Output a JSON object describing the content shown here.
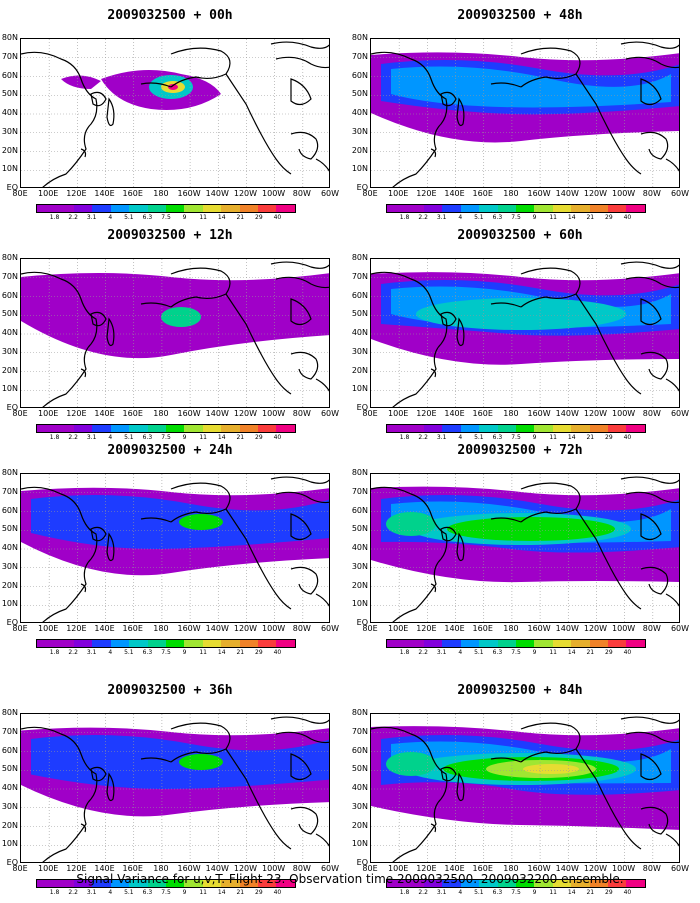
{
  "panels": [
    {
      "title": "2009032500 + 00h",
      "level": 1
    },
    {
      "title": "2009032500 + 48h",
      "level": 4
    },
    {
      "title": "2009032500 + 12h",
      "level": 2
    },
    {
      "title": "2009032500 + 60h",
      "level": 5
    },
    {
      "title": "2009032500 + 24h",
      "level": 3
    },
    {
      "title": "2009032500 + 72h",
      "level": 6
    },
    {
      "title": "2009032500 + 36h",
      "level": 3.5
    },
    {
      "title": "2009032500 + 84h",
      "level": 7
    }
  ],
  "lat_labels": [
    "80N",
    "70N",
    "60N",
    "50N",
    "40N",
    "30N",
    "20N",
    "10N",
    "EQ"
  ],
  "lon_labels": [
    "80E",
    "100E",
    "120E",
    "140E",
    "160E",
    "180",
    "160W",
    "140W",
    "120W",
    "100W",
    "80W",
    "60W"
  ],
  "colorbar": {
    "labels": [
      "1.8",
      "2.2",
      "3.1",
      "4",
      "5.1",
      "6.3",
      "7.5",
      "9",
      "11",
      "14",
      "21",
      "29",
      "40"
    ],
    "colors": [
      "#a000c8",
      "#8200dc",
      "#1e3cff",
      "#0096ff",
      "#00c8c8",
      "#00d28c",
      "#00dc00",
      "#a0e632",
      "#e6dc32",
      "#e6af2d",
      "#f08228",
      "#fa3c3c",
      "#f00082"
    ]
  },
  "caption": "Signal Variance for u,v,T. Flight 23. Observation time 2009032500. 2009032200 ensemble."
}
